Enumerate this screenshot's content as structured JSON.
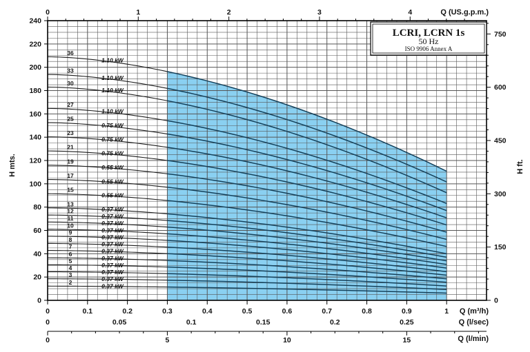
{
  "chart_data": {
    "type": "line",
    "legend": {
      "title": "LCRI, LCRN 1s",
      "frequency": "50 Hz",
      "standard": "ISO 9906 Annex A"
    },
    "y_left": {
      "label": "H mts.",
      "min": 0,
      "max": 240,
      "ticks": [
        "0",
        "20",
        "40",
        "60",
        "80",
        "100",
        "120",
        "140",
        "160",
        "180",
        "200",
        "220",
        "240"
      ]
    },
    "y_right": {
      "label": "H ft.",
      "ticks": [
        {
          "v": 0,
          "t": "0"
        },
        {
          "v": 150,
          "t": "150"
        },
        {
          "v": 300,
          "t": "300"
        },
        {
          "v": 450,
          "t": "450"
        },
        {
          "v": 600,
          "t": "600"
        },
        {
          "v": 750,
          "t": "750"
        }
      ]
    },
    "x_m3h": {
      "label": "Q (m³/h)",
      "min": 0,
      "max": 1.1,
      "ticks": [
        "0",
        "0.1",
        "0.2",
        "0.3",
        "0.4",
        "0.5",
        "0.6",
        "0.7",
        "0.8",
        "0.9",
        "1"
      ]
    },
    "x_top": {
      "label": "Q (US.g.p.m.)",
      "ticks": [
        {
          "v": 0,
          "t": "0"
        },
        {
          "v": 1,
          "t": "1"
        },
        {
          "v": 2,
          "t": "2"
        },
        {
          "v": 3,
          "t": "3"
        },
        {
          "v": 4,
          "t": "4"
        }
      ]
    },
    "x_ls": {
      "label": "Q (l/sec)",
      "ticks": [
        {
          "v": 0,
          "t": "0"
        },
        {
          "v": 0.05,
          "t": "0.05"
        },
        {
          "v": 0.1,
          "t": "0.1"
        },
        {
          "v": 0.15,
          "t": "0.15"
        },
        {
          "v": 0.2,
          "t": "0.2"
        },
        {
          "v": 0.25,
          "t": "0.25"
        }
      ]
    },
    "x_lmin": {
      "label": "Q (l/min)",
      "ticks": [
        {
          "v": 0,
          "t": "0"
        },
        {
          "v": 5,
          "t": "5"
        },
        {
          "v": 10,
          "t": "10"
        },
        {
          "v": 15,
          "t": "15"
        }
      ]
    },
    "operating_range": {
      "q_min": 0.3,
      "q_max": 1.0
    },
    "series": [
      {
        "stages": 2,
        "h0": 12.2,
        "h_end": 6.2,
        "kw": "0.37 kW"
      },
      {
        "stages": 3,
        "h0": 18.5,
        "h_end": 9.3,
        "kw": "0.37 kW"
      },
      {
        "stages": 4,
        "h0": 24.5,
        "h_end": 12.3,
        "kw": "0.37 kW"
      },
      {
        "stages": 5,
        "h0": 30.5,
        "h_end": 15.5,
        "kw": "0.37 kW"
      },
      {
        "stages": 6,
        "h0": 36.5,
        "h_end": 18.5,
        "kw": "0.37 kW"
      },
      {
        "stages": 7,
        "h0": 42.8,
        "h_end": 21.6,
        "kw": "0.37 kW"
      },
      {
        "stages": 8,
        "h0": 48.8,
        "h_end": 24.6,
        "kw": "0.37 kW"
      },
      {
        "stages": 9,
        "h0": 55.0,
        "h_end": 27.7,
        "kw": "0.37 kW"
      },
      {
        "stages": 10,
        "h0": 61.0,
        "h_end": 30.8,
        "kw": "0.37 kW"
      },
      {
        "stages": 11,
        "h0": 67.2,
        "h_end": 33.9,
        "kw": "0.37 kW"
      },
      {
        "stages": 12,
        "h0": 73.2,
        "h_end": 37.0,
        "kw": "0.37 kW"
      },
      {
        "stages": 13,
        "h0": 79.3,
        "h_end": 40.0,
        "kw": "0.37 kW"
      },
      {
        "stages": 15,
        "h0": 91.5,
        "h_end": 46.2,
        "kw": "0.55 kW"
      },
      {
        "stages": 17,
        "h0": 103.7,
        "h_end": 52.3,
        "kw": "0.55 kW"
      },
      {
        "stages": 19,
        "h0": 116.0,
        "h_end": 58.5,
        "kw": "0.55 kW"
      },
      {
        "stages": 21,
        "h0": 128.2,
        "h_end": 64.7,
        "kw": "0.75 kW"
      },
      {
        "stages": 23,
        "h0": 140.3,
        "h_end": 70.8,
        "kw": "0.75 kW"
      },
      {
        "stages": 25,
        "h0": 152.5,
        "h_end": 77.0,
        "kw": "0.75 kW"
      },
      {
        "stages": 27,
        "h0": 164.7,
        "h_end": 83.1,
        "kw": "1.10 kW"
      },
      {
        "stages": 30,
        "h0": 183.0,
        "h_end": 92.3,
        "kw": "1.10 kW"
      },
      {
        "stages": 33,
        "h0": 193.8,
        "h_end": 101.6,
        "kw": "1.10 kW"
      },
      {
        "stages": 36,
        "h0": 209.0,
        "h_end": 110.8,
        "kw": "1.10 kW"
      }
    ]
  }
}
